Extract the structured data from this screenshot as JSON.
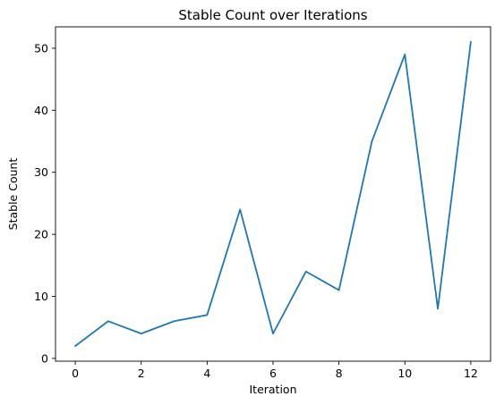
{
  "chart_data": {
    "type": "line",
    "title": "Stable Count over Iterations",
    "xlabel": "Iteration",
    "ylabel": "Stable Count",
    "x": [
      0,
      1,
      2,
      3,
      4,
      5,
      6,
      7,
      8,
      9,
      10,
      11,
      12
    ],
    "series": [
      {
        "name": "",
        "values": [
          2,
          6,
          4,
          6,
          7,
          24,
          4,
          14,
          11,
          35,
          49,
          8,
          51
        ],
        "color": "#1f77b4"
      }
    ],
    "xlim": [
      -0.6,
      12.6
    ],
    "ylim": [
      -0.45,
      53.45
    ],
    "xticks": [
      0,
      2,
      4,
      6,
      8,
      10,
      12
    ],
    "yticks": [
      0,
      10,
      20,
      30,
      40,
      50
    ],
    "grid": false,
    "legend": "none"
  }
}
